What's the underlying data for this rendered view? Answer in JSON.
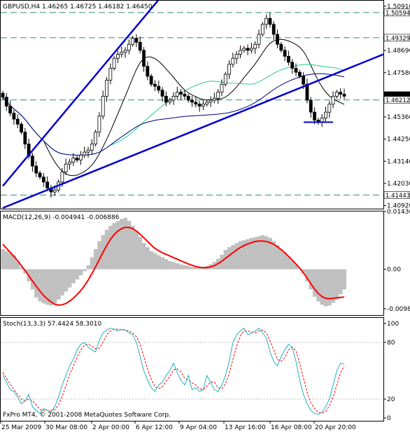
{
  "chart_data": [
    {
      "type": "candlestick",
      "panel": "price",
      "title": "GBPUSD,H4  1.46265 1.46725 1.46182 1.46450",
      "x_ticks": [
        "25 Mar 2009",
        "30 Mar 08:00",
        "2 Apr 00:00",
        "6 Apr 12:00",
        "9 Apr 04:00",
        "13 Apr 16:00",
        "16 Apr 08:00",
        "20 Apr 20:00"
      ],
      "y_ticks": [
        "1.50910",
        "1.48690",
        "1.47580",
        "1.45360",
        "1.44250",
        "1.43140",
        "1.42030",
        "1.40920"
      ],
      "ylim": [
        1.408,
        1.5115
      ],
      "price_tags": [
        {
          "text": "1.50594",
          "value": 1.50594
        },
        {
          "text": "1.49329",
          "value": 1.49329
        },
        {
          "text": "1.46450",
          "value": 1.4645,
          "current": true
        },
        {
          "text": "1.46212",
          "value": 1.46212
        },
        {
          "text": "1.41443",
          "value": 1.41443
        }
      ],
      "close_path": [
        1.4635,
        1.459,
        1.4555,
        1.4525,
        1.45,
        1.446,
        1.44,
        1.434,
        1.429,
        1.4255,
        1.4235,
        1.421,
        1.418,
        1.416,
        1.417,
        1.421,
        1.426,
        1.43,
        1.431,
        1.433,
        1.432,
        1.4345,
        1.436,
        1.437,
        1.44,
        1.446,
        1.454,
        1.464,
        1.472,
        1.478,
        1.483,
        1.485,
        1.486,
        1.487,
        1.49,
        1.493,
        1.491,
        1.487,
        1.479,
        1.474,
        1.47,
        1.469,
        1.467,
        1.464,
        1.461,
        1.462,
        1.464,
        1.466,
        1.465,
        1.464,
        1.462,
        1.461,
        1.46,
        1.459,
        1.46,
        1.461,
        1.462,
        1.463,
        1.466,
        1.47,
        1.475,
        1.48,
        1.483,
        1.485,
        1.487,
        1.488,
        1.487,
        1.488,
        1.49,
        1.495,
        1.5,
        1.503,
        1.5,
        1.495,
        1.49,
        1.487,
        1.484,
        1.481,
        1.478,
        1.476,
        1.474,
        1.47,
        1.462,
        1.456,
        1.452,
        1.451,
        1.453,
        1.456,
        1.46,
        1.464,
        1.466,
        1.465,
        1.464
      ],
      "overlays": [
        {
          "kind": "channel-line",
          "color": "#0000cc",
          "from": [
            "25 Mar",
            1.419
          ],
          "to": [
            "9 Apr",
            1.512
          ]
        },
        {
          "kind": "channel-line",
          "color": "#0000cc",
          "from": [
            "25 Mar",
            1.408
          ],
          "to": [
            "20 Apr",
            1.485
          ]
        },
        {
          "kind": "moving-average",
          "color": "#000000"
        },
        {
          "kind": "moving-average",
          "color": "#22cc88"
        },
        {
          "kind": "moving-average",
          "color": "#000080"
        },
        {
          "kind": "support-line",
          "color": "#0000cc",
          "value": 1.451
        }
      ]
    },
    {
      "type": "histogram+line",
      "panel": "macd",
      "title": "MACD(12,26,9) -0.004941 -0.006886",
      "y_ticks": [
        "0.014363",
        "0.00",
        "-0.0098"
      ],
      "ylim": [
        -0.0112,
        0.01436
      ],
      "histogram": [
        0.005,
        0.0045,
        0.004,
        0.0035,
        0.002,
        0.0005,
        -0.001,
        -0.003,
        -0.005,
        -0.007,
        -0.008,
        -0.0085,
        -0.0088,
        -0.009,
        -0.0085,
        -0.0075,
        -0.0065,
        -0.0055,
        -0.0045,
        -0.0035,
        -0.0025,
        -0.0015,
        -0.0005,
        0.001,
        0.003,
        0.005,
        0.007,
        0.0085,
        0.0098,
        0.0108,
        0.0115,
        0.012,
        0.0125,
        0.0128,
        0.012,
        0.0108,
        0.0095,
        0.008,
        0.0065,
        0.0055,
        0.0045,
        0.004,
        0.0035,
        0.003,
        0.0025,
        0.002,
        0.0018,
        0.0015,
        0.0012,
        0.001,
        0.0008,
        0.0006,
        0.0005,
        0.0005,
        0.0006,
        0.0008,
        0.0012,
        0.0018,
        0.0026,
        0.0036,
        0.0048,
        0.0055,
        0.006,
        0.0065,
        0.007,
        0.0072,
        0.0075,
        0.0078,
        0.008,
        0.0082,
        0.0085,
        0.0082,
        0.0078,
        0.007,
        0.006,
        0.005,
        0.0042,
        0.0032,
        0.0022,
        0.0012,
        0.0002,
        -0.001,
        -0.003,
        -0.005,
        -0.0068,
        -0.008,
        -0.0088,
        -0.0092,
        -0.009,
        -0.0083,
        -0.0075,
        -0.0062,
        -0.005
      ],
      "signal": [
        0.0062,
        0.0052,
        0.0042,
        0.0032,
        0.0021,
        0.0009,
        -0.0003,
        -0.0016,
        -0.0029,
        -0.0042,
        -0.0054,
        -0.0065,
        -0.0074,
        -0.0081,
        -0.0087,
        -0.0089,
        -0.0088,
        -0.0085,
        -0.0079,
        -0.0072,
        -0.0063,
        -0.0053,
        -0.0041,
        -0.0027,
        -0.0011,
        0.0006,
        0.0024,
        0.0042,
        0.0059,
        0.0074,
        0.0086,
        0.0095,
        0.0101,
        0.0104,
        0.0104,
        0.0101,
        0.0095,
        0.0087,
        0.0078,
        0.0069,
        0.006,
        0.0052,
        0.0046,
        0.0041,
        0.0037,
        0.0033,
        0.0029,
        0.0025,
        0.0021,
        0.0017,
        0.0013,
        0.001,
        0.0007,
        0.0005,
        0.0004,
        0.0004,
        0.0006,
        0.0009,
        0.0014,
        0.002,
        0.0027,
        0.0034,
        0.0041,
        0.0048,
        0.0054,
        0.0059,
        0.0063,
        0.0066,
        0.0069,
        0.007,
        0.007,
        0.0069,
        0.0066,
        0.0062,
        0.0056,
        0.0049,
        0.0041,
        0.0032,
        0.0023,
        0.0013,
        0.0003,
        -0.0009,
        -0.0022,
        -0.0036,
        -0.0049,
        -0.006,
        -0.0068,
        -0.0072,
        -0.0073,
        -0.0072,
        -0.0071,
        -0.007,
        -0.0069
      ],
      "series": [
        {
          "color": "#c0c0c0"
        },
        {
          "color": "#ff0000"
        }
      ]
    },
    {
      "type": "line",
      "panel": "stochastic",
      "title": "Stoch(13,3,3) 57.4424 58.3010",
      "y_ticks": [
        "100",
        "80",
        "20",
        "0"
      ],
      "ylim": [
        0,
        100
      ],
      "main": [
        45,
        38,
        30,
        28,
        22,
        15,
        18,
        25,
        12,
        8,
        5,
        10,
        8,
        6,
        12,
        22,
        35,
        45,
        55,
        62,
        72,
        78,
        80,
        75,
        72,
        70,
        82,
        90,
        93,
        95,
        94,
        92,
        94,
        93,
        90,
        88,
        80,
        65,
        50,
        40,
        32,
        28,
        35,
        38,
        45,
        50,
        58,
        48,
        40,
        35,
        45,
        30,
        32,
        28,
        30,
        45,
        38,
        30,
        28,
        35,
        45,
        60,
        80,
        88,
        92,
        95,
        88,
        90,
        92,
        95,
        90,
        85,
        70,
        60,
        55,
        65,
        72,
        78,
        75,
        60,
        40,
        25,
        15,
        8,
        5,
        4,
        6,
        12,
        20,
        35,
        50,
        58,
        57
      ],
      "signal": [
        48,
        42,
        36,
        30,
        25,
        20,
        18,
        20,
        18,
        14,
        9,
        8,
        8,
        8,
        9,
        14,
        23,
        34,
        46,
        55,
        64,
        72,
        77,
        78,
        76,
        73,
        74,
        80,
        88,
        92,
        94,
        94,
        93,
        93,
        92,
        90,
        86,
        78,
        65,
        52,
        41,
        33,
        31,
        33,
        39,
        44,
        51,
        52,
        49,
        42,
        40,
        37,
        35,
        31,
        30,
        34,
        38,
        38,
        32,
        31,
        36,
        47,
        62,
        76,
        87,
        92,
        92,
        91,
        90,
        92,
        93,
        90,
        82,
        72,
        62,
        60,
        64,
        72,
        75,
        71,
        58,
        42,
        27,
        16,
        10,
        6,
        5,
        7,
        13,
        22,
        35,
        48,
        55
      ],
      "series": [
        {
          "color": "#20b0c0"
        },
        {
          "color": "#ff0000"
        }
      ]
    }
  ],
  "watermark": "FxPro MT4, © 2001-2008 MetaQuotes Software Corp."
}
